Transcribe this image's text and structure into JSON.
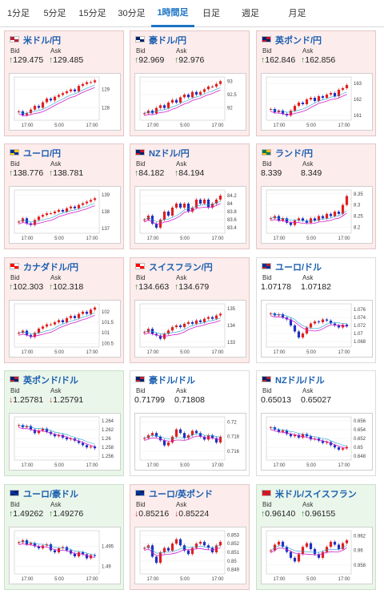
{
  "tabs": [
    {
      "label": "1分足",
      "active": false
    },
    {
      "label": "5分足",
      "active": false
    },
    {
      "label": "15分足",
      "active": false
    },
    {
      "label": "30分足",
      "active": false
    },
    {
      "label": "1時間足",
      "active": true
    },
    {
      "label": "日足",
      "active": false
    },
    {
      "label": "週足",
      "active": false
    },
    {
      "label": "月足",
      "active": false
    }
  ],
  "labels": {
    "bid": "Bid",
    "ask": "Ask"
  },
  "arrows": {
    "up": "↑",
    "down": "↓"
  },
  "colors": {
    "up_bg": "#fdecec",
    "down_bg": "#eaf6ea",
    "candle_up": "#e02020",
    "candle_down": "#2030c0",
    "ma_main": "#d020d0",
    "ma_short": "#20a0d0",
    "link": "#1b5fb0"
  },
  "pairs": [
    {
      "name": "米ドル/円",
      "flag": "usd-jpy-flag",
      "trend": "up",
      "bid_dir": "up",
      "ask_dir": "up",
      "bid": "129.475",
      "ask": "129.485",
      "chart_data": {
        "type": "candlestick",
        "yticks": [
          "129",
          "128"
        ],
        "xticks": [
          "17:00",
          "5:00",
          "17:00"
        ],
        "ylim": [
          127.4,
          129.6
        ],
        "closes": [
          127.8,
          127.6,
          127.7,
          127.9,
          128.1,
          128.0,
          128.3,
          128.5,
          128.4,
          128.6,
          128.7,
          128.8,
          128.9,
          129.0,
          128.9,
          129.2,
          129.3,
          129.4,
          129.4,
          129.5
        ]
      }
    },
    {
      "name": "豪ドル/円",
      "flag": "aud-jpy-flag",
      "trend": "up",
      "bid_dir": "up",
      "ask_dir": "up",
      "bid": "92.969",
      "ask": "92.976",
      "chart_data": {
        "type": "candlestick",
        "yticks": [
          "93",
          "92.5",
          "92"
        ],
        "xticks": [
          "17:00",
          "5:00",
          "17:00"
        ],
        "ylim": [
          91.6,
          93.1
        ],
        "closes": [
          91.8,
          91.9,
          91.8,
          92.0,
          92.1,
          92.0,
          92.2,
          92.3,
          92.2,
          92.4,
          92.5,
          92.4,
          92.6,
          92.5,
          92.6,
          92.7,
          92.8,
          92.8,
          92.9,
          93.0
        ]
      }
    },
    {
      "name": "英ポンド/円",
      "flag": "gbp-jpy-flag",
      "trend": "up",
      "bid_dir": "up",
      "ask_dir": "up",
      "bid": "162.846",
      "ask": "162.856",
      "chart_data": {
        "type": "candlestick",
        "yticks": [
          "163",
          "162",
          "161"
        ],
        "xticks": [
          "17:00",
          "5:00",
          "17:00"
        ],
        "ylim": [
          160.8,
          163.3
        ],
        "closes": [
          161.4,
          161.2,
          161.3,
          161.1,
          161.0,
          161.3,
          161.6,
          161.8,
          161.7,
          162.0,
          162.1,
          161.9,
          162.2,
          162.1,
          162.3,
          162.4,
          162.2,
          162.6,
          162.7,
          162.9
        ]
      }
    },
    {
      "name": "ユーロ/円",
      "flag": "eur-jpy-flag",
      "trend": "up",
      "bid_dir": "up",
      "ask_dir": "up",
      "bid": "138.776",
      "ask": "138.781",
      "chart_data": {
        "type": "candlestick",
        "yticks": [
          "139",
          "138",
          "137"
        ],
        "xticks": [
          "17:00",
          "5:00",
          "17:00"
        ],
        "ylim": [
          136.8,
          139.2
        ],
        "closes": [
          137.4,
          137.6,
          137.3,
          137.2,
          137.5,
          137.7,
          137.8,
          137.9,
          137.9,
          138.0,
          138.1,
          138.0,
          138.2,
          138.3,
          138.2,
          138.4,
          138.5,
          138.6,
          138.7,
          138.8
        ]
      }
    },
    {
      "name": "NZドル/円",
      "flag": "nzd-jpy-flag",
      "trend": "up",
      "bid_dir": "up",
      "ask_dir": "up",
      "bid": "84.182",
      "ask": "84.194",
      "chart_data": {
        "type": "candlestick",
        "yticks": [
          "84.2",
          "84",
          "83.8",
          "83.6",
          "83.4"
        ],
        "xticks": [
          "17:00",
          "5:00",
          "17:00"
        ],
        "ylim": [
          83.3,
          84.3
        ],
        "closes": [
          83.6,
          83.7,
          83.5,
          83.4,
          83.6,
          83.8,
          83.7,
          83.9,
          84.0,
          83.9,
          84.0,
          83.8,
          83.9,
          84.1,
          84.0,
          84.1,
          83.9,
          84.0,
          84.1,
          84.2
        ]
      }
    },
    {
      "name": "ランド/円",
      "flag": "zar-jpy-flag",
      "trend": "up",
      "bid_dir": "",
      "ask_dir": "",
      "bid": "8.339",
      "ask": "8.349",
      "chart_data": {
        "type": "candlestick",
        "yticks": [
          "8.35",
          "8.3",
          "8.25",
          "8.2"
        ],
        "xticks": [
          "17:00",
          "5:00",
          "17:00"
        ],
        "ylim": [
          8.18,
          8.36
        ],
        "closes": [
          8.24,
          8.25,
          8.23,
          8.24,
          8.22,
          8.21,
          8.23,
          8.24,
          8.23,
          8.22,
          8.24,
          8.23,
          8.25,
          8.24,
          8.26,
          8.25,
          8.27,
          8.26,
          8.3,
          8.34
        ]
      }
    },
    {
      "name": "カナダドル/円",
      "flag": "cad-jpy-flag",
      "trend": "up",
      "bid_dir": "up",
      "ask_dir": "up",
      "bid": "102.303",
      "ask": "102.318",
      "chart_data": {
        "type": "candlestick",
        "yticks": [
          "102",
          "101.5",
          "101",
          "100.5"
        ],
        "xticks": [
          "17:00",
          "5:00",
          "17:00"
        ],
        "ylim": [
          100.4,
          102.3
        ],
        "closes": [
          101.0,
          101.1,
          100.9,
          100.8,
          101.0,
          101.2,
          101.3,
          101.4,
          101.4,
          101.5,
          101.6,
          101.5,
          101.7,
          101.8,
          101.7,
          101.9,
          102.0,
          101.9,
          102.1,
          102.2
        ]
      }
    },
    {
      "name": "スイスフラン/円",
      "flag": "chf-jpy-flag",
      "trend": "up",
      "bid_dir": "up",
      "ask_dir": "up",
      "bid": "134.663",
      "ask": "134.679",
      "chart_data": {
        "type": "candlestick",
        "yticks": [
          "135",
          "134",
          "133"
        ],
        "xticks": [
          "17:00",
          "5:00",
          "17:00"
        ],
        "ylim": [
          132.8,
          135.2
        ],
        "closes": [
          133.6,
          133.8,
          133.5,
          133.4,
          133.2,
          133.5,
          133.7,
          133.9,
          134.0,
          133.9,
          134.1,
          134.2,
          134.1,
          134.3,
          134.2,
          134.4,
          134.5,
          134.4,
          134.6,
          134.7
        ]
      }
    },
    {
      "name": "ユーロ/ドル",
      "flag": "eur-usd-flag",
      "trend": "flat",
      "bid_dir": "",
      "ask_dir": "",
      "bid": "1.07178",
      "ask": "1.07182",
      "chart_data": {
        "type": "candlestick",
        "yticks": [
          "1.076",
          "1.074",
          "1.072",
          "1.07",
          "1.068"
        ],
        "xticks": [
          "17:00",
          "5:00",
          "17:00"
        ],
        "ylim": [
          1.067,
          1.077
        ],
        "closes": [
          1.075,
          1.0745,
          1.0748,
          1.074,
          1.0735,
          1.072,
          1.0705,
          1.069,
          1.07,
          1.0715,
          1.0725,
          1.073,
          1.0728,
          1.0735,
          1.0732,
          1.0725,
          1.072,
          1.0715,
          1.0722,
          1.0718
        ]
      }
    },
    {
      "name": "英ポンド/ドル",
      "flag": "gbp-usd-flag",
      "trend": "down",
      "bid_dir": "down",
      "ask_dir": "down",
      "bid": "1.25781",
      "ask": "1.25791",
      "chart_data": {
        "type": "candlestick",
        "yticks": [
          "1.264",
          "1.262",
          "1.26",
          "1.258",
          "1.256"
        ],
        "xticks": [
          "17:00",
          "5:00",
          "17:00"
        ],
        "ylim": [
          1.2555,
          1.2645
        ],
        "closes": [
          1.263,
          1.2625,
          1.2628,
          1.262,
          1.2612,
          1.2618,
          1.2622,
          1.2615,
          1.261,
          1.2605,
          1.2608,
          1.2602,
          1.2598,
          1.26,
          1.2595,
          1.259,
          1.2585,
          1.258,
          1.2582,
          1.2578
        ]
      }
    },
    {
      "name": "豪ドル/ドル",
      "flag": "aud-usd-flag",
      "trend": "flat",
      "bid_dir": "",
      "ask_dir": "",
      "bid": "0.71799",
      "ask": "0.71808",
      "chart_data": {
        "type": "candlestick",
        "yticks": [
          "0.72",
          "0.718",
          "0.716"
        ],
        "xticks": [
          "17:00",
          "5:00",
          "17:00"
        ],
        "ylim": [
          0.715,
          0.7205
        ],
        "closes": [
          0.7178,
          0.7182,
          0.7185,
          0.718,
          0.7175,
          0.7168,
          0.7172,
          0.718,
          0.719,
          0.7185,
          0.7178,
          0.7182,
          0.7188,
          0.7185,
          0.718,
          0.7176,
          0.7182,
          0.7178,
          0.7172,
          0.718
        ]
      }
    },
    {
      "name": "NZドル/ドル",
      "flag": "nzd-usd-flag",
      "trend": "flat",
      "bid_dir": "",
      "ask_dir": "",
      "bid": "0.65013",
      "ask": "0.65027",
      "chart_data": {
        "type": "candlestick",
        "yticks": [
          "0.656",
          "0.654",
          "0.652",
          "0.65",
          "0.648"
        ],
        "xticks": [
          "17:00",
          "5:00",
          "17:00"
        ],
        "ylim": [
          0.6475,
          0.6565
        ],
        "closes": [
          0.6545,
          0.654,
          0.6535,
          0.6538,
          0.653,
          0.6525,
          0.6528,
          0.6522,
          0.653,
          0.6525,
          0.6518,
          0.652,
          0.6515,
          0.651,
          0.6512,
          0.6505,
          0.65,
          0.6495,
          0.6498,
          0.6501
        ]
      }
    },
    {
      "name": "ユーロ/豪ドル",
      "flag": "eur-aud-flag",
      "trend": "down",
      "bid_dir": "up",
      "ask_dir": "up",
      "bid": "1.49262",
      "ask": "1.49276",
      "chart_data": {
        "type": "candlestick",
        "yticks": [
          "1.495",
          "1.49"
        ],
        "xticks": [
          "17:00",
          "5:00",
          "17:00"
        ],
        "ylim": [
          1.4885,
          1.4985
        ],
        "closes": [
          1.496,
          1.4965,
          1.4955,
          1.4958,
          1.495,
          1.4945,
          1.4952,
          1.4955,
          1.494,
          1.4935,
          1.4945,
          1.4948,
          1.494,
          1.4932,
          1.4925,
          1.4935,
          1.493,
          1.492,
          1.4928,
          1.4926
        ]
      }
    },
    {
      "name": "ユーロ/英ポンド",
      "flag": "eur-gbp-flag",
      "trend": "up",
      "bid_dir": "down",
      "ask_dir": "down",
      "bid": "0.85216",
      "ask": "0.85224",
      "chart_data": {
        "type": "candlestick",
        "yticks": [
          "0.853",
          "0.852",
          "0.851",
          "0.85",
          "0.849"
        ],
        "xticks": [
          "17:00",
          "5:00",
          "17:00"
        ],
        "ylim": [
          0.8487,
          0.8533
        ],
        "closes": [
          0.8515,
          0.8518,
          0.8505,
          0.8498,
          0.851,
          0.8515,
          0.8512,
          0.852,
          0.8525,
          0.8518,
          0.8512,
          0.8508,
          0.8515,
          0.852,
          0.8522,
          0.8518,
          0.8515,
          0.851,
          0.8518,
          0.8522
        ]
      }
    },
    {
      "name": "米ドル/スイスフラン",
      "flag": "usd-chf-flag",
      "trend": "down",
      "bid_dir": "up",
      "ask_dir": "up",
      "bid": "0.96140",
      "ask": "0.96155",
      "chart_data": {
        "type": "candlestick",
        "yticks": [
          "0.962",
          "0.96",
          "0.958"
        ],
        "xticks": [
          "17:00",
          "5:00",
          "17:00"
        ],
        "ylim": [
          0.957,
          0.9625
        ],
        "closes": [
          0.96,
          0.9608,
          0.9612,
          0.9605,
          0.9598,
          0.959,
          0.9585,
          0.9595,
          0.9605,
          0.961,
          0.9602,
          0.9595,
          0.959,
          0.9598,
          0.9605,
          0.9612,
          0.9608,
          0.9602,
          0.961,
          0.9614
        ]
      }
    }
  ]
}
